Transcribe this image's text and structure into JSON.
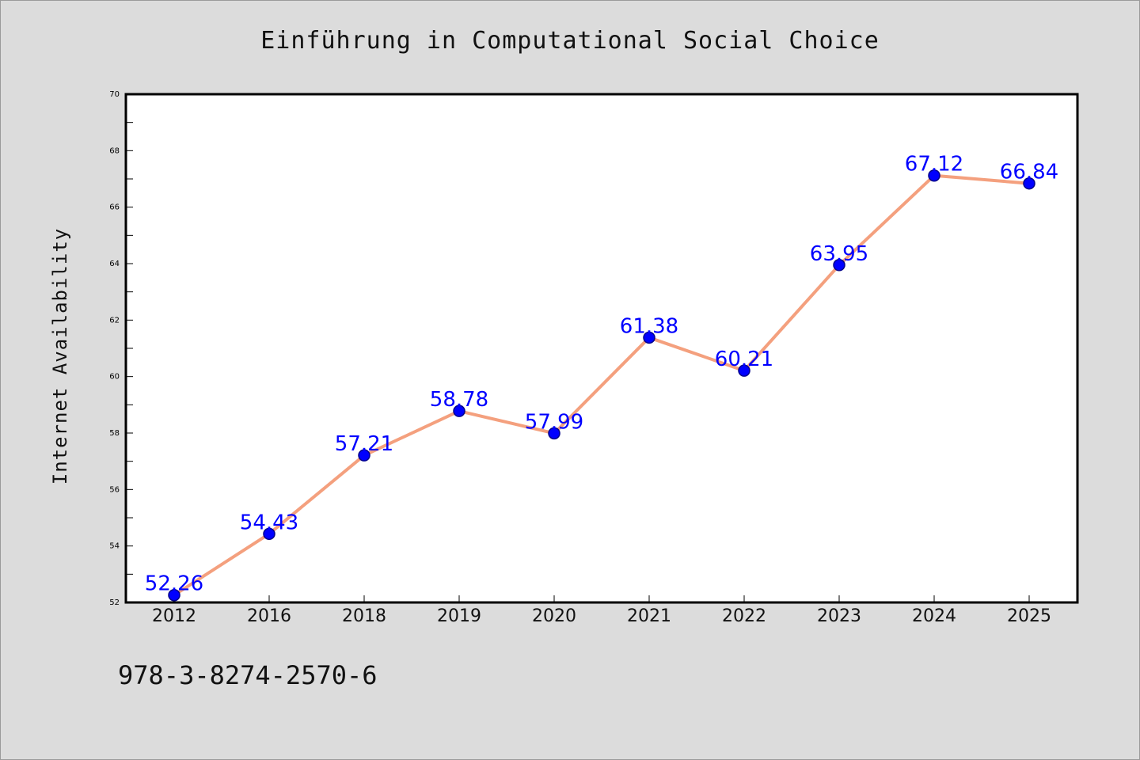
{
  "chart_data": {
    "type": "line",
    "title": "Einführung in Computational Social Choice",
    "xlabel": "",
    "ylabel": "Internet Availability",
    "categories": [
      "2012",
      "2016",
      "2018",
      "2019",
      "2020",
      "2021",
      "2022",
      "2023",
      "2024",
      "2025"
    ],
    "series": [
      {
        "values": [
          52.26,
          54.43,
          57.21,
          58.78,
          57.99,
          61.38,
          60.21,
          63.95,
          67.12,
          66.84
        ]
      }
    ],
    "data_labels": [
      "52.26",
      "54.43",
      "57.21",
      "58.78",
      "57.99",
      "61.38",
      "60.21",
      "63.95",
      "67.12",
      "66.84"
    ],
    "ylim": [
      52,
      70
    ],
    "yticks": [
      52,
      54,
      56,
      58,
      60,
      62,
      64,
      66,
      68,
      70
    ],
    "ytick_labels": [
      "52",
      "54",
      "56",
      "58",
      "60",
      "62",
      "64",
      "66",
      "68",
      "70"
    ],
    "grid": false,
    "legend": "none",
    "colors": {
      "line": "#f4a07e",
      "marker": "#0000ff",
      "marker_edge": "#00008b",
      "data_label": "#0000ff",
      "plot_background": "#ffffff",
      "figure_background": "#dcdcdc"
    }
  },
  "footer": {
    "isbn": "978-3-8274-2570-6"
  }
}
